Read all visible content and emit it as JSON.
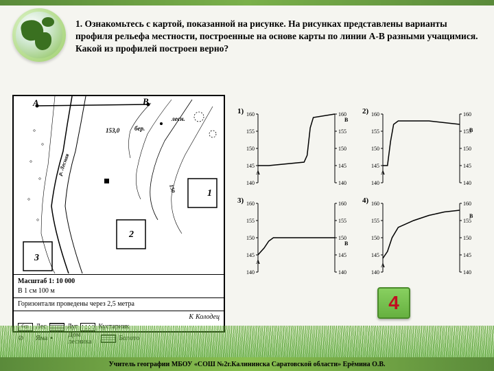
{
  "question": {
    "text": "1. Ознакомьтесь с картой, показанной на рисунке. На рисунках представлены варианты профиля рельефа местности, построенные на основе карты по линии А-В разными учащимися. Какой из профилей построен верно?"
  },
  "map": {
    "point_a": "А",
    "point_b": "В",
    "forest": "лесн.",
    "birch": "бер.",
    "elev1": "153,0",
    "contour": "150",
    "river": "р. Лесная",
    "sq1": "1",
    "sq2": "2",
    "sq3": "3",
    "scale_title": "Масштаб   1: 10 000",
    "scale_sub": "В 1 см 100 м",
    "contour_note": "Горизонтали проведены через 2,5 метра",
    "well_symbol": "К",
    "well_label": "Колодец",
    "legend": {
      "forest": "Лес",
      "meadow": "Луг",
      "shrub": "Кустарник",
      "pit": "Яма",
      "house": "Дом лесника",
      "swamp": "Болото",
      "birch": "бер."
    }
  },
  "charts": {
    "axis": {
      "ymin": 140,
      "ymax": 160,
      "ticks": [
        140,
        145,
        150,
        155,
        160
      ],
      "tick_fontsize": 8,
      "axis_color": "#000000",
      "line_color": "#000000",
      "line_width": 1.5
    },
    "mark_a": "А",
    "mark_b": "В",
    "profiles": [
      {
        "num": "1)",
        "pts": [
          [
            0,
            145
          ],
          [
            8,
            145
          ],
          [
            14,
            145
          ],
          [
            60,
            146
          ],
          [
            64,
            148
          ],
          [
            66,
            152
          ],
          [
            68,
            156
          ],
          [
            72,
            159
          ],
          [
            100,
            160
          ]
        ]
      },
      {
        "num": "2)",
        "pts": [
          [
            0,
            145
          ],
          [
            6,
            145
          ],
          [
            10,
            152
          ],
          [
            14,
            157
          ],
          [
            20,
            158
          ],
          [
            60,
            158
          ],
          [
            100,
            157
          ]
        ]
      },
      {
        "num": "3)",
        "pts": [
          [
            0,
            145
          ],
          [
            8,
            147
          ],
          [
            14,
            149
          ],
          [
            20,
            150
          ],
          [
            60,
            150
          ],
          [
            100,
            150
          ]
        ]
      },
      {
        "num": "4)",
        "pts": [
          [
            0,
            144
          ],
          [
            6,
            146
          ],
          [
            12,
            150
          ],
          [
            20,
            153
          ],
          [
            40,
            155
          ],
          [
            60,
            156.5
          ],
          [
            80,
            157.5
          ],
          [
            100,
            158
          ]
        ]
      }
    ]
  },
  "answer": {
    "value": "4",
    "bg_color": "#77c050",
    "text_color": "#c01020"
  },
  "footer": {
    "text": "Учитель географии МБОУ «СОШ №2г.Калининска Саратовской области» Ерёмина О.В."
  }
}
